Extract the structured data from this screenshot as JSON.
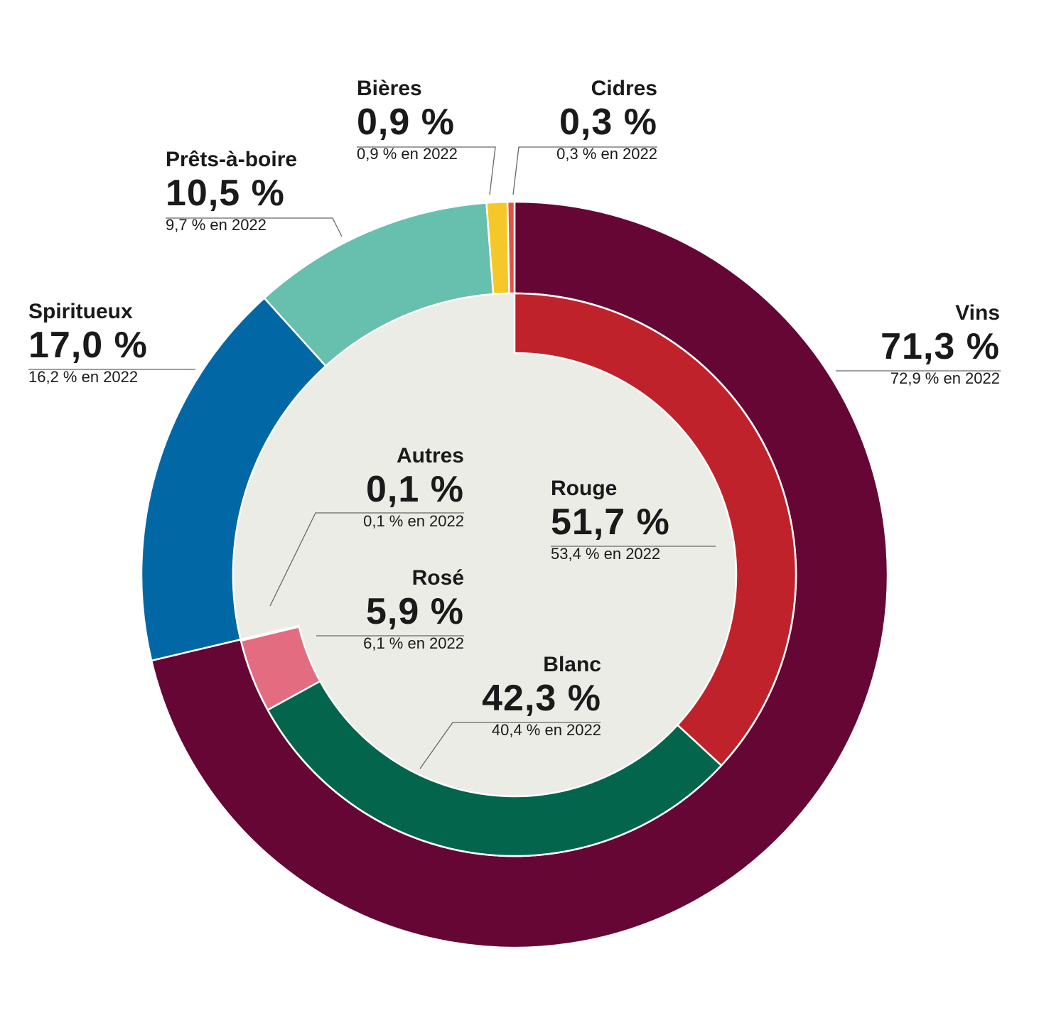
{
  "chart_data": {
    "type": "pie",
    "rings": [
      {
        "ring": "outer",
        "slices": [
          {
            "label": "Vins",
            "value": 71.3,
            "previous": "72,9 % en 2022",
            "display": "71,3 %",
            "color": "#650634"
          },
          {
            "label": "Spiritueux",
            "value": 17.0,
            "previous": "16,2 % en 2022",
            "display": "17,0 %",
            "color": "#0268a5"
          },
          {
            "label": "Prêts-à-boire",
            "value": 10.5,
            "previous": "9,7 % en 2022",
            "display": "10,5 %",
            "color": "#67bfad"
          },
          {
            "label": "Bières",
            "value": 0.9,
            "previous": "0,9 % en 2022",
            "display": "0,9 %",
            "color": "#f6c728"
          },
          {
            "label": "Cidres",
            "value": 0.3,
            "previous": "0,3 % en 2022",
            "display": "0,3 %",
            "color": "#e0534a"
          }
        ]
      },
      {
        "ring": "inner",
        "parent": "Vins",
        "slices": [
          {
            "label": "Rouge",
            "value": 51.7,
            "previous": "53,4 % en 2022",
            "display": "51,7 %",
            "color": "#c0222c"
          },
          {
            "label": "Blanc",
            "value": 42.3,
            "previous": "40,4 % en 2022",
            "display": "42,3 %",
            "color": "#02654c"
          },
          {
            "label": "Rosé",
            "value": 5.9,
            "previous": "6,1 % en 2022",
            "display": "5,9 %",
            "color": "#e46c80"
          },
          {
            "label": "Autres",
            "value": 0.1,
            "previous": "0,1 % en 2022",
            "display": "0,1 %",
            "color": "#e8e8e2"
          }
        ]
      }
    ],
    "center_color": "#ecece6"
  }
}
